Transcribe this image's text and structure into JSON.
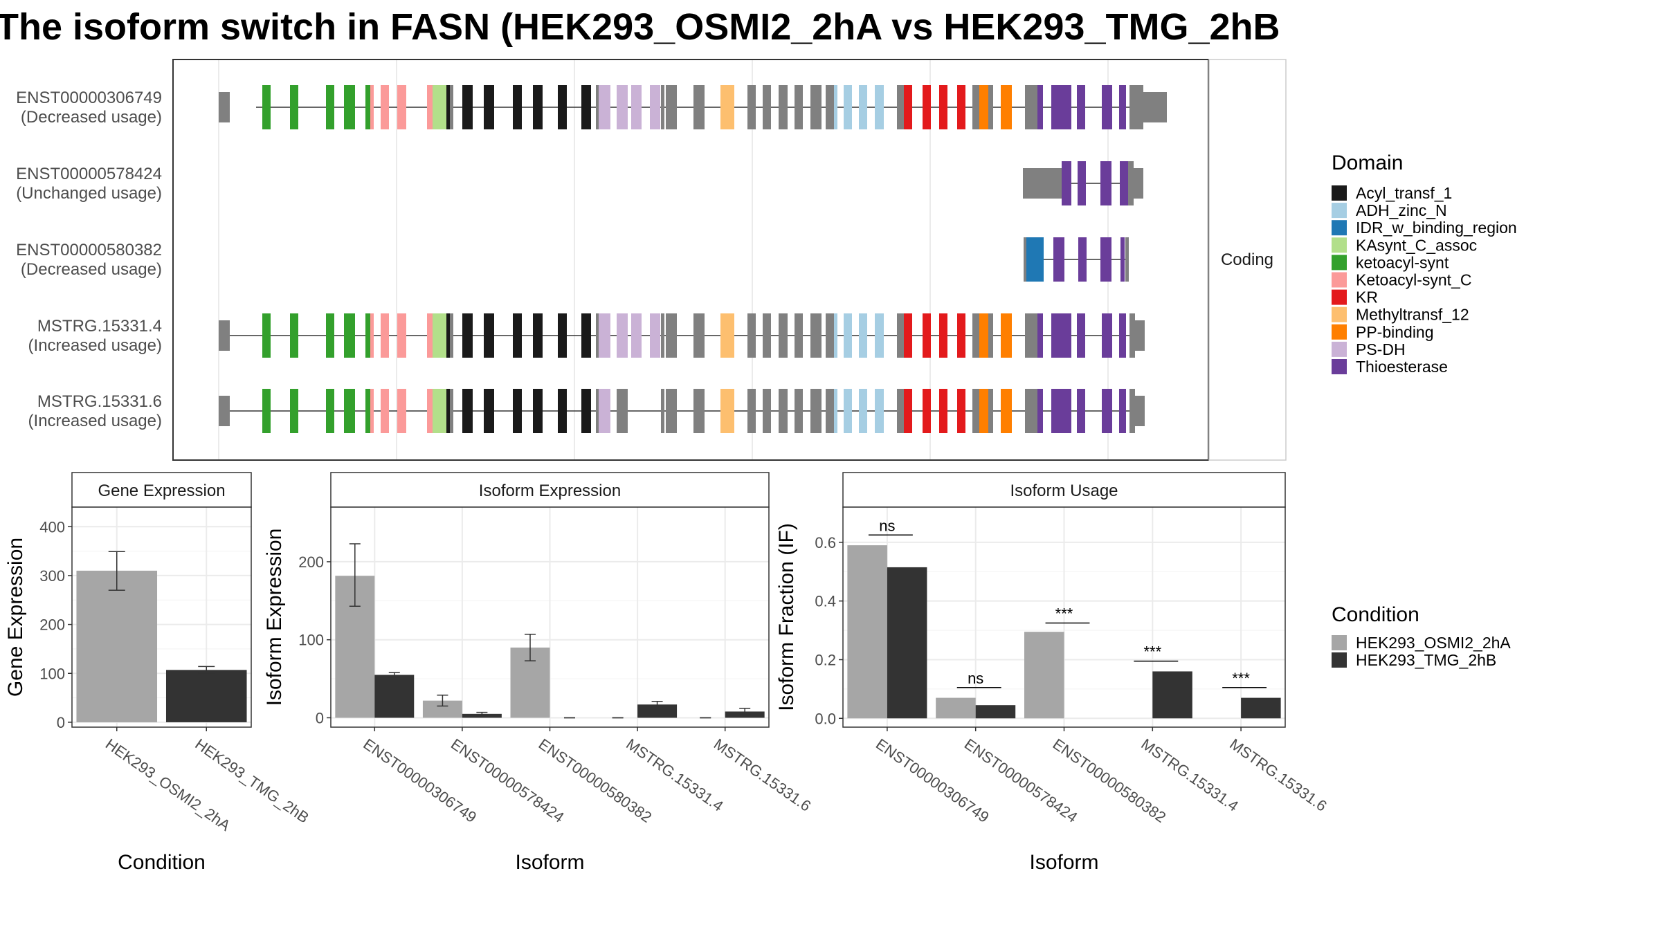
{
  "title": "The isoform switch in FASN (HEK293_OSMI2_2hA vs HEK293_TMG_2hB",
  "colors": {
    "Acyl_transf_1": "#1a1a1a",
    "ADH_zinc_N": "#a6cee3",
    "IDR_w_binding_region": "#1f78b4",
    "KAsynt_C_assoc": "#b2df8a",
    "ketoacyl-synt": "#33a02c",
    "Ketoacyl-synt_C": "#fb9a99",
    "KR": "#e31a1c",
    "Methyltransf_12": "#fdbf6f",
    "PP-binding": "#ff7f00",
    "PS-DH": "#cab2d6",
    "Thioesterase": "#6a3d9a",
    "noncoding": "#808080",
    "condA": "#a6a6a6",
    "condB": "#333333"
  },
  "chart_data": [
    {
      "type": "gene-structure",
      "facet_label": "Coding",
      "transcripts": [
        {
          "id": "ENST00000306749",
          "usage": "(Decreased usage)"
        },
        {
          "id": "ENST00000578424",
          "usage": "(Unchanged usage)"
        },
        {
          "id": "ENST00000580382",
          "usage": "(Decreased usage)"
        },
        {
          "id": "MSTRG.15331.4",
          "usage": "(Increased usage)"
        },
        {
          "id": "MSTRG.15331.6",
          "usage": "(Increased usage)"
        }
      ],
      "legend": {
        "title": "Domain",
        "items": [
          "Acyl_transf_1",
          "ADH_zinc_N",
          "IDR_w_binding_region",
          "KAsynt_C_assoc",
          "ketoacyl-synt",
          "Ketoacyl-synt_C",
          "KR",
          "Methyltransf_12",
          "PP-binding",
          "PS-DH",
          "Thioesterase"
        ]
      }
    },
    {
      "type": "bar",
      "title": "Gene Expression",
      "xlabel": "Condition",
      "ylabel": "Gene Expression",
      "categories": [
        "HEK293_OSMI2_2hA",
        "HEK293_TMG_2hB"
      ],
      "values": [
        310,
        107
      ],
      "errors": [
        [
          270,
          349
        ],
        [
          101,
          114
        ]
      ],
      "ylim": [
        -10,
        440
      ],
      "yticks": [
        0,
        100,
        200,
        300,
        400
      ]
    },
    {
      "type": "bar",
      "title": "Isoform Expression",
      "xlabel": "Isoform",
      "ylabel": "Isoform Expression",
      "categories": [
        "ENST00000306749",
        "ENST00000578424",
        "ENST00000580382",
        "MSTRG.15331.4",
        "MSTRG.15331.6"
      ],
      "series": [
        {
          "name": "HEK293_OSMI2_2hA",
          "values": [
            182,
            22,
            90,
            0,
            0
          ],
          "errors": [
            [
              143,
              223
            ],
            [
              15,
              29
            ],
            [
              73,
              107
            ],
            [
              0,
              0
            ],
            [
              0,
              0
            ]
          ]
        },
        {
          "name": "HEK293_TMG_2hB",
          "values": [
            55,
            5,
            0,
            17,
            8
          ],
          "errors": [
            [
              52,
              58
            ],
            [
              3,
              7
            ],
            [
              0,
              0
            ],
            [
              13,
              21
            ],
            [
              4,
              12
            ]
          ]
        }
      ],
      "ylim": [
        -12,
        270
      ],
      "yticks": [
        0,
        100,
        200
      ]
    },
    {
      "type": "bar",
      "title": "Isoform Usage",
      "xlabel": "Isoform",
      "ylabel": "Isoform Fraction (IF)",
      "categories": [
        "ENST00000306749",
        "ENST00000578424",
        "ENST00000580382",
        "MSTRG.15331.4",
        "MSTRG.15331.6"
      ],
      "series": [
        {
          "name": "HEK293_OSMI2_2hA",
          "values": [
            0.59,
            0.07,
            0.295,
            0,
            0
          ]
        },
        {
          "name": "HEK293_TMG_2hB",
          "values": [
            0.515,
            0.045,
            0,
            0.16,
            0.07
          ]
        }
      ],
      "significance": [
        {
          "label": "ns",
          "y": 0.625
        },
        {
          "label": "ns",
          "y": 0.105
        },
        {
          "label": "***",
          "y": 0.325
        },
        {
          "label": "***",
          "y": 0.195
        },
        {
          "label": "***",
          "y": 0.105
        }
      ],
      "ylim": [
        -0.03,
        0.72
      ],
      "yticks": [
        "0.0",
        "0.2",
        "0.4",
        "0.6"
      ]
    }
  ],
  "condition_legend": {
    "title": "Condition",
    "items": [
      "HEK293_OSMI2_2hA",
      "HEK293_TMG_2hB"
    ]
  }
}
